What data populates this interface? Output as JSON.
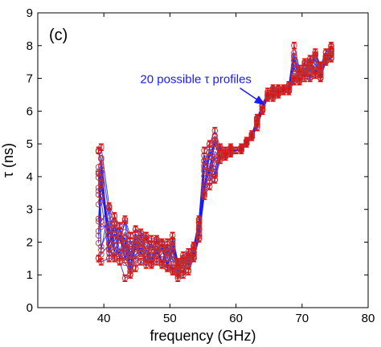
{
  "chart_data": {
    "type": "line",
    "panel_label": "(c)",
    "xlabel": "frequency (GHz)",
    "ylabel": "τ (ns)",
    "xlim": [
      30,
      80
    ],
    "ylim": [
      0,
      9
    ],
    "xticks": [
      40,
      50,
      60,
      70,
      80
    ],
    "yticks": [
      0,
      1,
      2,
      3,
      4,
      5,
      6,
      7,
      8,
      9
    ],
    "grid": false,
    "annotation": {
      "text": "20 possible τ profiles",
      "color": "#1a1aff",
      "arrow_to": [
        64.3,
        6.2
      ],
      "text_at": [
        45.5,
        6.85
      ]
    },
    "colors": {
      "line": "#1a1aff",
      "marker": "#c03030",
      "errorbar": "#e01010"
    },
    "x": [
      39.2,
      39.6,
      40.8,
      41.6,
      42.4,
      43.2,
      44.0,
      44.8,
      45.6,
      46.4,
      47.2,
      48.0,
      48.8,
      49.6,
      50.4,
      51.2,
      52.0,
      52.8,
      53.6,
      54.4,
      55.2,
      56.0,
      56.8,
      57.6,
      58.4,
      59.2,
      60.0,
      60.8,
      61.6,
      62.4,
      63.2,
      64.0,
      64.8,
      65.6,
      66.4,
      67.2,
      68.0,
      68.8,
      69.6,
      70.4,
      71.2,
      72.0,
      72.8,
      73.6,
      74.4
    ],
    "envelope": {
      "low": [
        1.5,
        1.4,
        1.5,
        1.5,
        1.4,
        0.9,
        1.0,
        1.2,
        1.4,
        1.3,
        1.3,
        1.4,
        1.3,
        1.2,
        1.1,
        0.9,
        1.0,
        1.1,
        1.5,
        2.1,
        3.4,
        3.7,
        3.9,
        4.5,
        4.6,
        4.7,
        4.8,
        4.8,
        5.0,
        5.2,
        5.5,
        6.0,
        6.4,
        6.4,
        6.5,
        6.6,
        6.6,
        6.9,
        6.9,
        7.0,
        7.0,
        7.1,
        7.0,
        7.5,
        7.6
      ],
      "high": [
        4.8,
        4.9,
        3.1,
        2.8,
        2.5,
        2.7,
        2.2,
        2.4,
        2.3,
        2.2,
        2.1,
        2.1,
        2.0,
        2.0,
        2.2,
        1.4,
        1.6,
        1.7,
        1.9,
        2.7,
        4.8,
        5.0,
        5.4,
        4.9,
        4.8,
        4.9,
        4.8,
        4.9,
        5.1,
        5.3,
        5.8,
        6.2,
        6.6,
        6.7,
        6.7,
        6.7,
        6.8,
        8.0,
        7.3,
        7.5,
        7.6,
        7.8,
        7.4,
        7.8,
        8.0
      ]
    },
    "profile_count": 20
  }
}
